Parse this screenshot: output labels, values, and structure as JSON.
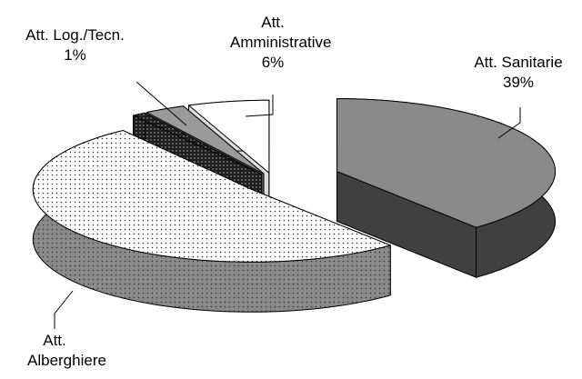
{
  "chart_data": {
    "type": "pie3d",
    "categories": [
      "Att. Sanitarie",
      "Att. Alberghiere",
      "Att. Log./Tecn.",
      null,
      "Att. Amministrative"
    ],
    "values": [
      39,
      51,
      1,
      3,
      6
    ],
    "value_labels": [
      "39%",
      null,
      "1%",
      null,
      "6%"
    ],
    "colors": [
      "#8a8a8a",
      "#ffffff",
      "#1e1e1e",
      "#9a9a9a",
      "#ffffff"
    ],
    "patterns": [
      null,
      "dots",
      "dots",
      null,
      null
    ]
  }
}
